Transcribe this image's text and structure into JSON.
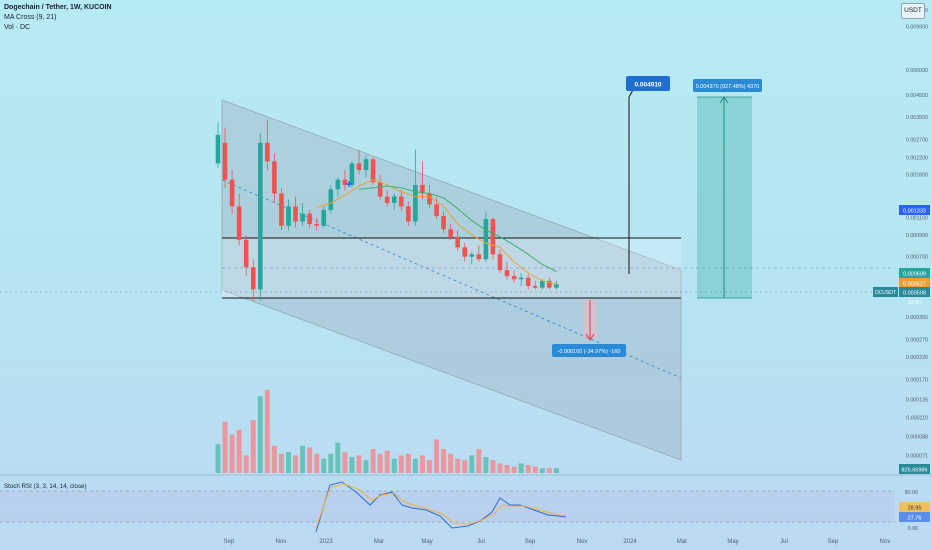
{
  "header": {
    "symbol_line": "Dogechain / Tether, 1W, KUCOIN",
    "indicator_1": "MA Cross (9, 21)",
    "indicator_2": "Vol · DC"
  },
  "currency_button": "USDT",
  "colors": {
    "up": "#26a69a",
    "down": "#ef5350",
    "ma_fast": "#f0a030",
    "ma_slow": "#3fae6a",
    "channel": "#9aa6b2",
    "target": "#2a8ad6",
    "stop": "#e0394a"
  },
  "chart_data": {
    "type": "candlestick",
    "timeframe": "1W",
    "price_scale": "log",
    "ylim": [
      6e-05,
      0.012
    ],
    "y_ticks": [
      "0.012000",
      "0.009900",
      "0.006000",
      "0.004500",
      "0.003500",
      "0.002700",
      "0.002200",
      "0.001800",
      "0.001100",
      "0.000900",
      "0.000700",
      "0.000350",
      "0.000270",
      "0.000220",
      "0.000170",
      "0.000135",
      "0.000110",
      "0.000088",
      "0.000071"
    ],
    "x_ticks": [
      "Sep",
      "Nov",
      "2023",
      "Mar",
      "May",
      "Jul",
      "Sep",
      "Nov",
      "2024",
      "Mar",
      "May",
      "Jul",
      "Sep",
      "Nov"
    ],
    "candles": [
      {
        "o": 0.00205,
        "h": 0.0033,
        "l": 0.00195,
        "c": 0.00285
      },
      {
        "o": 0.0026,
        "h": 0.0031,
        "l": 0.00155,
        "c": 0.0017
      },
      {
        "o": 0.0017,
        "h": 0.0019,
        "l": 0.00115,
        "c": 0.00125
      },
      {
        "o": 0.00125,
        "h": 0.00145,
        "l": 0.0008,
        "c": 0.00085
      },
      {
        "o": 0.00085,
        "h": 0.0009,
        "l": 0.00056,
        "c": 0.00062
      },
      {
        "o": 0.00062,
        "h": 0.00068,
        "l": 0.00042,
        "c": 0.00048
      },
      {
        "o": 0.00048,
        "h": 0.0029,
        "l": 0.00042,
        "c": 0.0026
      },
      {
        "o": 0.0026,
        "h": 0.0034,
        "l": 0.0019,
        "c": 0.0021
      },
      {
        "o": 0.0021,
        "h": 0.0023,
        "l": 0.0013,
        "c": 0.00145
      },
      {
        "o": 0.00145,
        "h": 0.00155,
        "l": 0.00095,
        "c": 0.001
      },
      {
        "o": 0.001,
        "h": 0.00135,
        "l": 0.00095,
        "c": 0.00125
      },
      {
        "o": 0.00125,
        "h": 0.0014,
        "l": 0.00098,
        "c": 0.00105
      },
      {
        "o": 0.00105,
        "h": 0.0013,
        "l": 0.001,
        "c": 0.00115
      },
      {
        "o": 0.00115,
        "h": 0.0012,
        "l": 0.00098,
        "c": 0.00102
      },
      {
        "o": 0.00102,
        "h": 0.0011,
        "l": 0.00095,
        "c": 0.001
      },
      {
        "o": 0.001,
        "h": 0.00125,
        "l": 0.00098,
        "c": 0.0012
      },
      {
        "o": 0.0012,
        "h": 0.0016,
        "l": 0.00115,
        "c": 0.00152
      },
      {
        "o": 0.00152,
        "h": 0.00175,
        "l": 0.0014,
        "c": 0.0017
      },
      {
        "o": 0.0017,
        "h": 0.0019,
        "l": 0.0015,
        "c": 0.0016
      },
      {
        "o": 0.0016,
        "h": 0.0021,
        "l": 0.00155,
        "c": 0.00205
      },
      {
        "o": 0.00205,
        "h": 0.0024,
        "l": 0.0018,
        "c": 0.0019
      },
      {
        "o": 0.0019,
        "h": 0.00225,
        "l": 0.00175,
        "c": 0.00215
      },
      {
        "o": 0.00215,
        "h": 0.0022,
        "l": 0.0016,
        "c": 0.00165
      },
      {
        "o": 0.00165,
        "h": 0.0018,
        "l": 0.00135,
        "c": 0.0014
      },
      {
        "o": 0.0014,
        "h": 0.0015,
        "l": 0.00125,
        "c": 0.0013
      },
      {
        "o": 0.0013,
        "h": 0.00145,
        "l": 0.0012,
        "c": 0.0014
      },
      {
        "o": 0.0014,
        "h": 0.00152,
        "l": 0.00118,
        "c": 0.00125
      },
      {
        "o": 0.00125,
        "h": 0.00132,
        "l": 0.001,
        "c": 0.00105
      },
      {
        "o": 0.00105,
        "h": 0.0024,
        "l": 0.001,
        "c": 0.0016
      },
      {
        "o": 0.0016,
        "h": 0.0021,
        "l": 0.00135,
        "c": 0.00145
      },
      {
        "o": 0.00145,
        "h": 0.0016,
        "l": 0.00122,
        "c": 0.00128
      },
      {
        "o": 0.00128,
        "h": 0.00138,
        "l": 0.00108,
        "c": 0.00112
      },
      {
        "o": 0.00112,
        "h": 0.00118,
        "l": 0.00092,
        "c": 0.00096
      },
      {
        "o": 0.00096,
        "h": 0.00102,
        "l": 0.00085,
        "c": 0.00088
      },
      {
        "o": 0.00088,
        "h": 0.00095,
        "l": 0.00075,
        "c": 0.00078
      },
      {
        "o": 0.00078,
        "h": 0.00082,
        "l": 0.00066,
        "c": 0.0007
      },
      {
        "o": 0.0007,
        "h": 0.00074,
        "l": 0.00064,
        "c": 0.00072
      },
      {
        "o": 0.00072,
        "h": 0.0008,
        "l": 0.00066,
        "c": 0.00068
      },
      {
        "o": 0.00068,
        "h": 0.00118,
        "l": 0.00066,
        "c": 0.00108
      },
      {
        "o": 0.00108,
        "h": 0.0011,
        "l": 0.00068,
        "c": 0.00072
      },
      {
        "o": 0.00072,
        "h": 0.00076,
        "l": 0.00058,
        "c": 0.0006
      },
      {
        "o": 0.0006,
        "h": 0.00066,
        "l": 0.00054,
        "c": 0.00056
      },
      {
        "o": 0.00056,
        "h": 0.0006,
        "l": 0.00052,
        "c": 0.00054
      },
      {
        "o": 0.00054,
        "h": 0.00058,
        "l": 0.0005,
        "c": 0.00055
      },
      {
        "o": 0.00055,
        "h": 0.00057,
        "l": 0.00048,
        "c": 0.0005
      },
      {
        "o": 0.0005,
        "h": 0.00053,
        "l": 0.00048,
        "c": 0.00049
      },
      {
        "o": 0.00049,
        "h": 0.00054,
        "l": 0.00048,
        "c": 0.00053
      },
      {
        "o": 0.00053,
        "h": 0.00055,
        "l": 0.00048,
        "c": 0.00049
      },
      {
        "o": 0.00049,
        "h": 0.00053,
        "l": 0.00048,
        "c": 0.00051
      }
    ],
    "ma_fast_points": [
      [
        14,
        0.00124
      ],
      [
        16,
        0.0013
      ],
      [
        18,
        0.00142
      ],
      [
        20,
        0.00158
      ],
      [
        22,
        0.0017
      ],
      [
        24,
        0.0016
      ],
      [
        26,
        0.00148
      ],
      [
        28,
        0.0014
      ],
      [
        30,
        0.0014
      ],
      [
        32,
        0.00125
      ],
      [
        34,
        0.00102
      ],
      [
        36,
        0.0009
      ],
      [
        38,
        0.00082
      ],
      [
        40,
        0.00078
      ],
      [
        42,
        0.00066
      ],
      [
        44,
        0.00058
      ],
      [
        46,
        0.00053
      ],
      [
        48,
        0.00051
      ]
    ],
    "ma_slow_points": [
      [
        20,
        0.00152
      ],
      [
        22,
        0.00155
      ],
      [
        24,
        0.00158
      ],
      [
        26,
        0.00155
      ],
      [
        28,
        0.00148
      ],
      [
        30,
        0.00145
      ],
      [
        32,
        0.00138
      ],
      [
        34,
        0.00122
      ],
      [
        36,
        0.00106
      ],
      [
        38,
        0.00095
      ],
      [
        40,
        0.00088
      ],
      [
        42,
        0.0008
      ],
      [
        44,
        0.00072
      ],
      [
        46,
        0.00064
      ],
      [
        48,
        0.00059
      ]
    ],
    "volume_scale_max": 1000,
    "volumes": [
      180,
      320,
      240,
      270,
      110,
      330,
      480,
      520,
      170,
      120,
      130,
      110,
      170,
      160,
      120,
      90,
      120,
      190,
      130,
      100,
      110,
      80,
      150,
      120,
      140,
      90,
      110,
      120,
      90,
      110,
      80,
      210,
      150,
      120,
      90,
      80,
      110,
      150,
      100,
      80,
      60,
      50,
      40,
      60,
      50,
      40,
      30,
      30,
      30
    ],
    "stoch_rsi": {
      "k_label": "28.95",
      "d_label": "27.76",
      "ticks": [
        "80.00",
        "0.00"
      ]
    },
    "right_labels": {
      "upper_ref": "0.001333",
      "level_a": "0.000609",
      "level_b": "0.000527",
      "symbol_tag": "DCUSDT",
      "current": "0.000508",
      "countdown": "1d 8h",
      "volume": "826.66986"
    },
    "annotations": {
      "top_target": "0.004910",
      "long_measure": "0.004370 (927.48%) 4370",
      "short_measure": "-0.000160 (-34.97%) -160",
      "stoch_title": "Stoch RSI (3, 3, 14, 14, close)"
    }
  }
}
